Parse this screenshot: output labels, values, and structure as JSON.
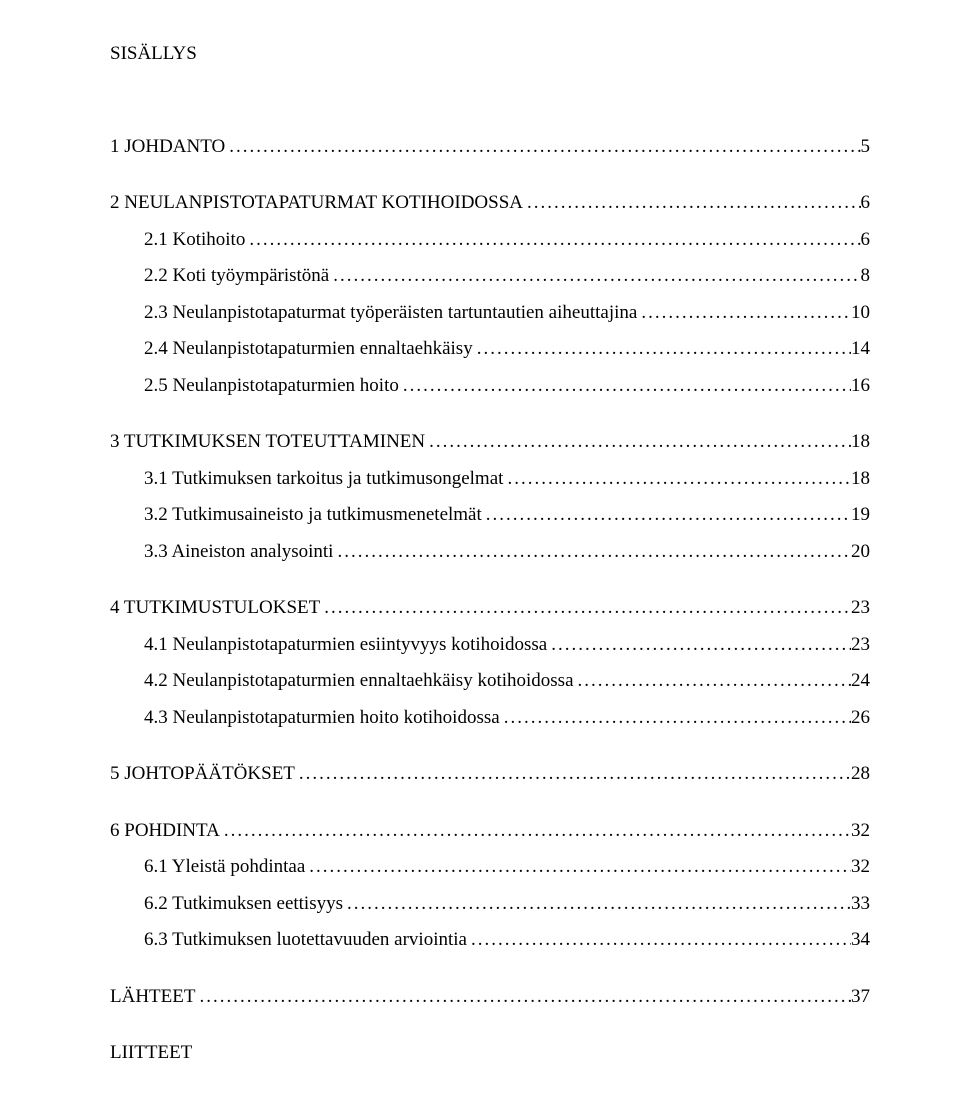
{
  "title": "SISÄLLYS",
  "dot_char": ".",
  "entries": [
    {
      "level": 0,
      "label": "1 JOHDANTO",
      "page": "5"
    },
    {
      "level": 0,
      "label": "2 NEULANPISTOTAPATURMAT KOTIHOIDOSSA",
      "page": "6"
    },
    {
      "level": 1,
      "label": "2.1 Kotihoito",
      "page": "6"
    },
    {
      "level": 1,
      "label": "2.2 Koti työympäristönä",
      "page": "8"
    },
    {
      "level": 1,
      "label": "2.3 Neulanpistotapaturmat työperäisten tartuntautien aiheuttajina",
      "page": "10"
    },
    {
      "level": 1,
      "label": "2.4 Neulanpistotapaturmien ennaltaehkäisy",
      "page": "14"
    },
    {
      "level": 1,
      "label": "2.5 Neulanpistotapaturmien hoito",
      "page": "16"
    },
    {
      "level": 0,
      "label": "3 TUTKIMUKSEN TOTEUTTAMINEN",
      "page": "18"
    },
    {
      "level": 1,
      "label": "3.1 Tutkimuksen tarkoitus ja tutkimusongelmat",
      "page": "18"
    },
    {
      "level": 1,
      "label": "3.2 Tutkimusaineisto ja tutkimusmenetelmät",
      "page": "19"
    },
    {
      "level": 1,
      "label": "3.3 Aineiston analysointi",
      "page": "20"
    },
    {
      "level": 0,
      "label": "4 TUTKIMUSTULOKSET",
      "page": "23"
    },
    {
      "level": 1,
      "label": "4.1 Neulanpistotapaturmien esiintyvyys kotihoidossa",
      "page": "23"
    },
    {
      "level": 1,
      "label": "4.2 Neulanpistotapaturmien ennaltaehkäisy kotihoidossa",
      "page": "24"
    },
    {
      "level": 1,
      "label": "4.3 Neulanpistotapaturmien hoito kotihoidossa",
      "page": "26"
    },
    {
      "level": 0,
      "label": "5 JOHTOPÄÄTÖKSET",
      "page": "28"
    },
    {
      "level": 0,
      "label": "6 POHDINTA",
      "page": "32"
    },
    {
      "level": 1,
      "label": "6.1 Yleistä pohdintaa",
      "page": "32"
    },
    {
      "level": 1,
      "label": "6.2 Tutkimuksen eettisyys",
      "page": "33"
    },
    {
      "level": 1,
      "label": "6.3 Tutkimuksen luotettavuuden arviointia",
      "page": "34"
    },
    {
      "level": 0,
      "label": "LÄHTEET",
      "page": "37"
    },
    {
      "level": 0,
      "label": "LIITTEET",
      "page": ""
    }
  ]
}
